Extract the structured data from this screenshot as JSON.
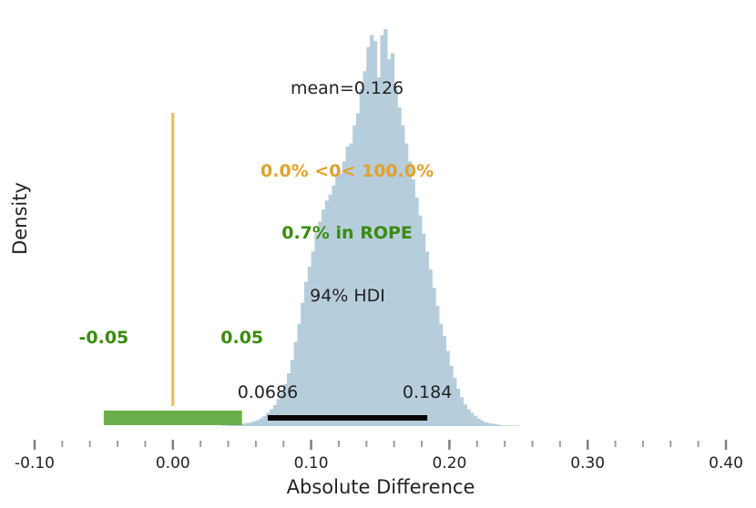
{
  "chart_data": {
    "type": "histogram",
    "title": "",
    "xlabel": "Absolute Difference",
    "ylabel": "Density",
    "xlim": [
      -0.1,
      0.4
    ],
    "x_major_ticks": [
      -0.1,
      0.0,
      0.1,
      0.2,
      0.3,
      0.4
    ],
    "x_tick_labels": [
      "-0.10",
      "0.00",
      "0.10",
      "0.20",
      "0.30",
      "0.40"
    ],
    "x_minor_step": 0.02,
    "bin_width": 0.0025,
    "bin_start": 0.035,
    "histogram_counts": [
      1,
      1,
      2,
      2,
      3,
      3,
      4,
      5,
      6,
      8,
      10,
      13,
      17,
      22,
      28,
      35,
      45,
      55,
      70,
      88,
      110,
      140,
      170,
      205,
      240,
      265,
      290,
      320,
      340,
      360,
      375,
      385,
      400,
      420,
      420,
      440,
      465,
      470,
      500,
      520,
      560,
      590,
      630,
      650,
      640,
      580,
      650,
      660,
      610,
      620,
      560,
      530,
      500,
      470,
      440,
      410,
      380,
      350,
      320,
      290,
      260,
      230,
      200,
      170,
      150,
      125,
      100,
      80,
      62,
      48,
      36,
      28,
      22,
      17,
      12,
      9,
      6,
      5,
      4,
      3,
      2,
      1,
      1,
      1,
      1,
      1
    ],
    "mean": 0.126,
    "mean_label": "mean=0.126",
    "reference_value": 0.0,
    "reference_label": "0.0% <0< 100.0%",
    "rope": [
      -0.05,
      0.05
    ],
    "rope_lower_label": "-0.05",
    "rope_upper_label": "0.05",
    "rope_percent_label": "0.7% in ROPE",
    "hdi": [
      0.0686,
      0.184
    ],
    "hdi_lower_label": "0.0686",
    "hdi_upper_label": "0.184",
    "hdi_label": "94% HDI",
    "colors": {
      "histogram": "#b6cddc",
      "reference": "#e6bd5c",
      "reference_text": "#e1a12b",
      "rope": "#5ea83c",
      "rope_text": "#3a8c0c",
      "hdi": "#000000",
      "text": "#222222",
      "tick": "#9e9e9e"
    }
  }
}
